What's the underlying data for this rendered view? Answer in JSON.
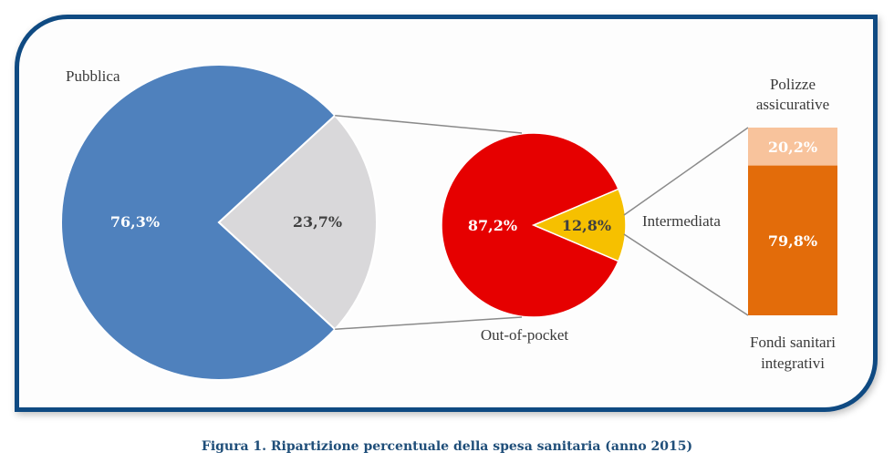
{
  "caption": "Figura 1. Ripartizione percentuale della spesa sanitaria (anno 2015)",
  "chart_data": [
    {
      "type": "pie",
      "slices": [
        {
          "label": "Pubblica",
          "value": 76.3,
          "value_label": "76,3%",
          "color": "#4f81bd"
        },
        {
          "label": "",
          "value": 23.7,
          "value_label": "23,7%",
          "color": "#d9d8da"
        }
      ]
    },
    {
      "type": "pie",
      "slices": [
        {
          "label": "Out-of-pocket",
          "value": 87.2,
          "value_label": "87,2%",
          "color": "#e60000"
        },
        {
          "label": "Intermediata",
          "value": 12.8,
          "value_label": "12,8%",
          "color": "#f6c000"
        }
      ]
    },
    {
      "type": "bar",
      "stacked": true,
      "segments": [
        {
          "label": "Polizze assicurative",
          "label_lines": [
            "Polizze",
            "assicurative"
          ],
          "value": 20.2,
          "value_label": "20,2%",
          "color": "#f8c39c"
        },
        {
          "label": "Fondi sanitari integrativi",
          "label_lines": [
            "Fondi sanitari",
            "integrativi"
          ],
          "value": 79.8,
          "value_label": "79,8%",
          "color": "#e36c0a"
        }
      ]
    }
  ]
}
